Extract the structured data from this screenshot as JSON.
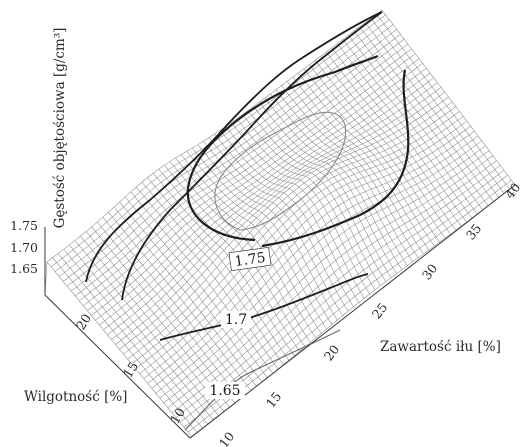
{
  "chart_data": {
    "type": "surface3d",
    "z_axis": {
      "label": "Gęstość objętościowa [g/cm³]",
      "ticks": [
        "1.75",
        "1.70",
        "1.65"
      ],
      "tick_values": [
        1.75,
        1.7,
        1.65
      ]
    },
    "x_axis": {
      "label": "Zawartość iłu [%]",
      "ticks": [
        "10",
        "15",
        "20",
        "25",
        "30",
        "35",
        "40"
      ],
      "tick_values": [
        10,
        15,
        20,
        25,
        30,
        35,
        40
      ],
      "range": [
        10,
        40
      ]
    },
    "y_axis": {
      "label": "Wilgotność  [%]",
      "ticks": [
        "10",
        "15",
        "20"
      ],
      "tick_values": [
        10,
        15,
        20
      ],
      "range": [
        10,
        22
      ]
    },
    "contour_labels": [
      "1.75",
      "1.7",
      "1.65"
    ],
    "contour_values": [
      1.75,
      1.7,
      1.65
    ],
    "colors": {
      "mesh": "#8a8a8a",
      "contour": "#1e1e1e",
      "text": "#2a2a2a"
    }
  }
}
